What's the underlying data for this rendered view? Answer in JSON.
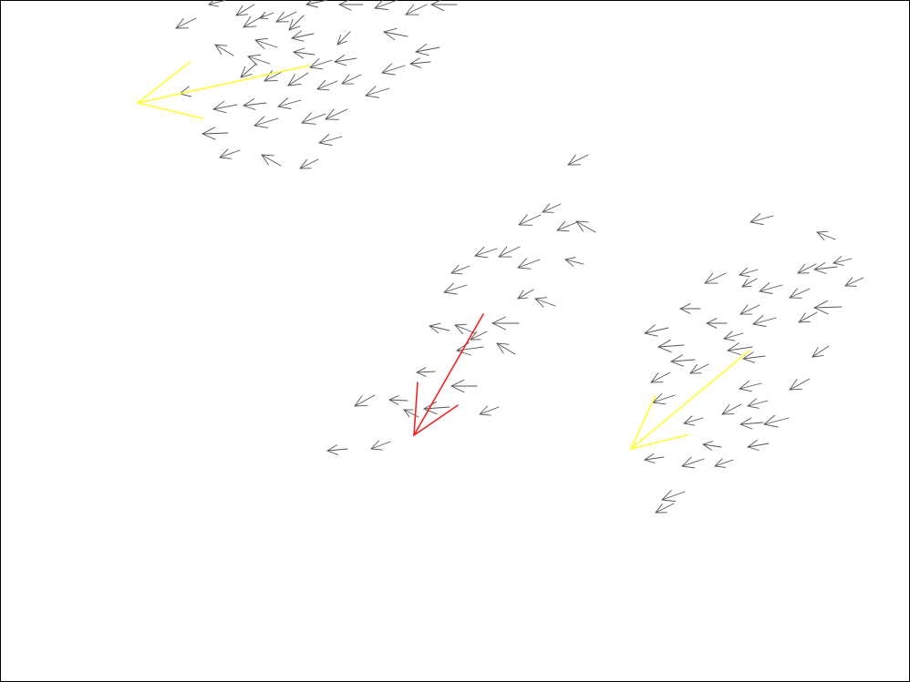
{
  "chart_data": {
    "type": "scatter",
    "kind": "vector-field",
    "grid": false,
    "legend": "none",
    "colors": {
      "border": "#000000",
      "arrow": "#555555",
      "highlight_yellow": "#ffff33",
      "highlight_red": "#ee2222"
    },
    "clusters": [
      {
        "name": "cluster-top-left",
        "arrows": [
          [
            193,
            31,
            215,
            20
          ],
          [
            229,
            5,
            248,
            0
          ],
          [
            259,
            17,
            279,
            5
          ],
          [
            267,
            30,
            289,
            17
          ],
          [
            285,
            20,
            300,
            14
          ],
          [
            303,
            24,
            325,
            13
          ],
          [
            317,
            33,
            333,
            17
          ],
          [
            336,
            5,
            359,
            0
          ],
          [
            372,
            5,
            398,
            5
          ],
          [
            411,
            9,
            436,
            0
          ],
          [
            445,
            16,
            468,
            5
          ],
          [
            473,
            5,
            501,
            5
          ],
          [
            236,
            49,
            256,
            61
          ],
          [
            280,
            44,
            304,
            52
          ],
          [
            320,
            42,
            344,
            37
          ],
          [
            322,
            57,
            345,
            60
          ],
          [
            370,
            49,
            384,
            35
          ],
          [
            421,
            35,
            447,
            40
          ],
          [
            456,
            57,
            482,
            52
          ],
          [
            450,
            70,
            472,
            68
          ],
          [
            264,
            85,
            281,
            70
          ],
          [
            272,
            62,
            296,
            70
          ],
          [
            290,
            89,
            313,
            77
          ],
          [
            316,
            94,
            338,
            80
          ],
          [
            340,
            74,
            364,
            66
          ],
          [
            348,
            98,
            370,
            89
          ],
          [
            375,
            92,
            396,
            82
          ],
          [
            419,
            80,
            444,
            72
          ],
          [
            367,
            68,
            391,
            64
          ],
          [
            197,
            103,
            220,
            98
          ],
          [
            234,
            120,
            260,
            115
          ],
          [
            267,
            116,
            292,
            113
          ],
          [
            305,
            117,
            330,
            110
          ],
          [
            279,
            138,
            305,
            130
          ],
          [
            331,
            135,
            357,
            125
          ],
          [
            357,
            131,
            381,
            120
          ],
          [
            401,
            105,
            427,
            97
          ],
          [
            222,
            147,
            250,
            146
          ],
          [
            241,
            173,
            263,
            165
          ],
          [
            287,
            170,
            308,
            182
          ],
          [
            329,
            185,
            349,
            175
          ],
          [
            350,
            157,
            375,
            150
          ]
        ]
      },
      {
        "name": "cluster-center",
        "arrows": [
          [
            623,
            181,
            645,
            170
          ],
          [
            595,
            233,
            615,
            224
          ],
          [
            569,
            247,
            593,
            236
          ],
          [
            611,
            253,
            633,
            244
          ],
          [
            632,
            243,
            653,
            255
          ],
          [
            521,
            281,
            545,
            273
          ],
          [
            547,
            282,
            570,
            271
          ],
          [
            568,
            294,
            592,
            285
          ],
          [
            620,
            285,
            640,
            290
          ],
          [
            495,
            300,
            515,
            292
          ],
          [
            487,
            321,
            512,
            313
          ],
          [
            568,
            328,
            585,
            318
          ],
          [
            587,
            328,
            609,
            336
          ],
          [
            471,
            358,
            493,
            363
          ],
          [
            499,
            357,
            521,
            366
          ],
          [
            540,
            355,
            569,
            355
          ],
          [
            516,
            373,
            534,
            364
          ],
          [
            501,
            385,
            530,
            381
          ],
          [
            545,
            377,
            565,
            389
          ],
          [
            457,
            409,
            477,
            408
          ],
          [
            495,
            424,
            523,
            424
          ],
          [
            389,
            446,
            411,
            434
          ],
          [
            427,
            439,
            447,
            440
          ],
          [
            443,
            450,
            459,
            458
          ],
          [
            465,
            449,
            493,
            447
          ],
          [
            526,
            455,
            547,
            447
          ],
          [
            407,
            493,
            428,
            485
          ],
          [
            359,
            495,
            381,
            493
          ]
        ]
      },
      {
        "name": "cluster-right",
        "arrows": [
          [
            823,
            244,
            848,
            237
          ],
          [
            896,
            255,
            916,
            263
          ],
          [
            773,
            311,
            796,
            300
          ],
          [
            811,
            302,
            831,
            296
          ],
          [
            814,
            315,
            830,
            306
          ],
          [
            833,
            320,
            858,
            313
          ],
          [
            875,
            300,
            895,
            290
          ],
          [
            893,
            296,
            918,
            293
          ],
          [
            914,
            289,
            934,
            284
          ],
          [
            927,
            314,
            947,
            305
          ],
          [
            746,
            339,
            768,
            339
          ],
          [
            775,
            355,
            797,
            355
          ],
          [
            812,
            345,
            833,
            335
          ],
          [
            826,
            356,
            851,
            349
          ],
          [
            794,
            372,
            815,
            366
          ],
          [
            707,
            366,
            733,
            360
          ],
          [
            722,
            381,
            750,
            379
          ],
          [
            736,
            397,
            762,
            395
          ],
          [
            757,
            410,
            777,
            400
          ],
          [
            798,
            385,
            825,
            381
          ],
          [
            815,
            394,
            839,
            391
          ],
          [
            866,
            327,
            888,
            317
          ],
          [
            876,
            354,
            896,
            343
          ],
          [
            893,
            338,
            923,
            337
          ],
          [
            891,
            392,
            909,
            380
          ],
          [
            866,
            428,
            888,
            416
          ],
          [
            714,
            420,
            735,
            409
          ],
          [
            716,
            442,
            740,
            434
          ],
          [
            750,
            465,
            771,
            459
          ],
          [
            792,
            455,
            813,
            444
          ],
          [
            811,
            427,
            835,
            421
          ],
          [
            812,
            466,
            837,
            464
          ],
          [
            820,
            446,
            842,
            440
          ],
          [
            838,
            466,
            865,
            459
          ],
          [
            771,
            488,
            791,
            491
          ],
          [
            707,
            505,
            728,
            502
          ],
          [
            748,
            512,
            772,
            504
          ],
          [
            784,
            512,
            804,
            505
          ],
          [
            820,
            491,
            843,
            487
          ],
          [
            726,
            549,
            751,
            540
          ],
          [
            719,
            563,
            739,
            553
          ]
        ]
      }
    ],
    "highlights": [
      {
        "name": "yellow-arrow-top-left",
        "color": "yellow",
        "x1": 339,
        "y1": 72,
        "x2": 151,
        "y2": 113
      },
      {
        "name": "red-arrow-center",
        "color": "red",
        "x1": 530,
        "y1": 345,
        "x2": 454,
        "y2": 478
      },
      {
        "name": "yellow-arrow-right",
        "color": "yellow",
        "x1": 822,
        "y1": 385,
        "x2": 692,
        "y2": 493
      }
    ]
  }
}
